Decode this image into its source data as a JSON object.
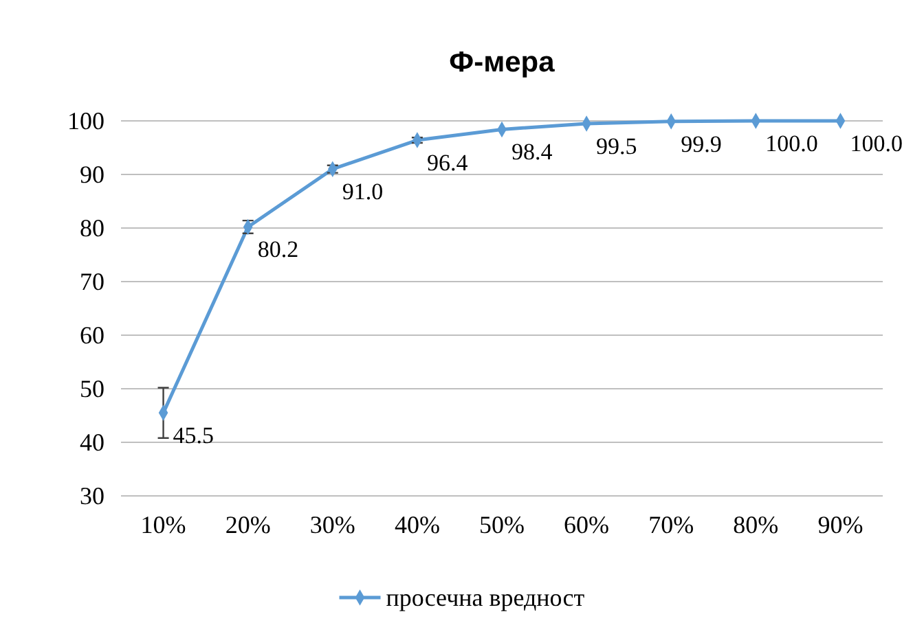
{
  "chart_data": {
    "type": "line",
    "title": "Ф-мера",
    "categories": [
      "10%",
      "20%",
      "30%",
      "40%",
      "50%",
      "60%",
      "70%",
      "80%",
      "90%"
    ],
    "series": [
      {
        "name": "просечна вредност",
        "color": "#5b9bd5",
        "values": [
          45.5,
          80.2,
          91.0,
          96.4,
          98.4,
          99.5,
          99.9,
          100.0,
          100.0
        ],
        "errors": [
          4.7,
          1.2,
          0.7,
          0.5,
          null,
          null,
          null,
          null,
          null
        ],
        "value_labels": [
          "45.5",
          "80.2",
          "91.0",
          "96.4",
          "98.4",
          "99.5",
          "99.9",
          "100.0",
          "100.0"
        ]
      }
    ],
    "ylim": [
      30,
      100
    ],
    "yticks": [
      30,
      40,
      50,
      60,
      70,
      80,
      90,
      100
    ],
    "grid": "y",
    "legend": "bottom",
    "marker": "diamond",
    "line_style": "solid"
  }
}
